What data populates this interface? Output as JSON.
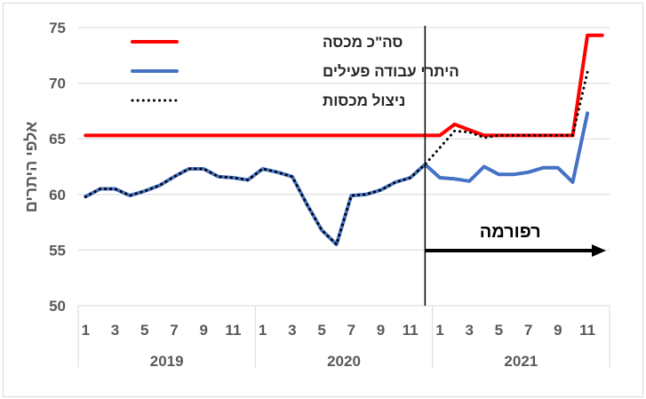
{
  "chart_data": {
    "type": "line",
    "ylabel": "אלפי היתרים",
    "ylim": [
      50,
      75
    ],
    "yticks": [
      50,
      55,
      60,
      65,
      70,
      75
    ],
    "grid": "horizontal",
    "legend_position": "top-left",
    "years": [
      "2019",
      "2020",
      "2021"
    ],
    "month_ticks": [
      1,
      3,
      5,
      7,
      9,
      11
    ],
    "x_count": 36,
    "series": [
      {
        "name": "סה\"כ מכסה",
        "color": "#ff0000",
        "style": "solid",
        "values": [
          65.3,
          65.3,
          65.3,
          65.3,
          65.3,
          65.3,
          65.3,
          65.3,
          65.3,
          65.3,
          65.3,
          65.3,
          65.3,
          65.3,
          65.3,
          65.3,
          65.3,
          65.3,
          65.3,
          65.3,
          65.3,
          65.3,
          65.3,
          65.3,
          65.3,
          66.3,
          65.8,
          65.3,
          65.3,
          65.3,
          65.3,
          65.3,
          65.3,
          65.3,
          74.3,
          74.3
        ]
      },
      {
        "name": "היתרי עבודה  פעילים",
        "color": "#4472c4",
        "style": "solid",
        "values": [
          59.8,
          60.5,
          60.5,
          59.9,
          60.3,
          60.8,
          61.6,
          62.3,
          62.3,
          61.6,
          61.5,
          61.3,
          62.3,
          62.0,
          61.6,
          59.1,
          56.8,
          55.5,
          59.9,
          60.0,
          60.4,
          61.1,
          61.5,
          62.7,
          61.5,
          61.4,
          61.2,
          62.5,
          61.8,
          61.8,
          62.0,
          62.4,
          62.4,
          61.1,
          67.3,
          null
        ]
      },
      {
        "name": "ניצול מכסות",
        "color": "#000000",
        "style": "dotted",
        "values": [
          59.8,
          60.5,
          60.5,
          59.9,
          60.3,
          60.8,
          61.6,
          62.3,
          62.3,
          61.6,
          61.5,
          61.3,
          62.3,
          62.0,
          61.6,
          59.1,
          56.8,
          55.5,
          59.9,
          60.0,
          60.4,
          61.1,
          61.5,
          62.7,
          64.2,
          65.7,
          65.6,
          65.1,
          65.3,
          65.3,
          65.3,
          65.3,
          65.3,
          65.3,
          71.0,
          null
        ]
      }
    ],
    "annotation": {
      "text": "רפורמה",
      "vline_after_index": 23
    }
  }
}
